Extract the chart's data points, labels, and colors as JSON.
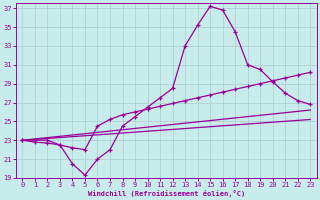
{
  "xlabel": "Windchill (Refroidissement éolien,°C)",
  "background_color": "#c8ecec",
  "grid_color": "#aaaacc",
  "line_color": "#990099",
  "xlim_min": -0.5,
  "xlim_max": 23.5,
  "ylim_min": 19,
  "ylim_max": 37.5,
  "yticks": [
    19,
    21,
    23,
    25,
    27,
    29,
    31,
    33,
    35,
    37
  ],
  "xticks": [
    0,
    1,
    2,
    3,
    4,
    5,
    6,
    7,
    8,
    9,
    10,
    11,
    12,
    13,
    14,
    15,
    16,
    17,
    18,
    19,
    20,
    21,
    22,
    23
  ],
  "line1_x": [
    0,
    1,
    2,
    3,
    4,
    5,
    6,
    7,
    8,
    9,
    10,
    11,
    12,
    13,
    14,
    15,
    16,
    17,
    18,
    19,
    20,
    21,
    22,
    23
  ],
  "line1_y": [
    23,
    23,
    23,
    22.5,
    20.5,
    19.3,
    21.0,
    22.0,
    24.5,
    25.5,
    26.5,
    27.5,
    28.5,
    33.0,
    35.2,
    37.2,
    36.8,
    34.5,
    31.0,
    30.5,
    29.2,
    28.0,
    27.2,
    26.8
  ],
  "line2_x": [
    0,
    1,
    2,
    3,
    4,
    5,
    6,
    7,
    8,
    9,
    10,
    11,
    12,
    13,
    14,
    15,
    16,
    17,
    18,
    19,
    20,
    21,
    22,
    23
  ],
  "line2_y": [
    23.0,
    22.8,
    22.7,
    22.5,
    22.2,
    22.0,
    24.5,
    25.2,
    25.7,
    26.0,
    26.3,
    26.6,
    26.9,
    27.2,
    27.5,
    27.8,
    28.1,
    28.4,
    28.7,
    29.0,
    29.3,
    29.6,
    29.9,
    30.2
  ],
  "line3_x": [
    0,
    23
  ],
  "line3_y": [
    23.0,
    26.2
  ],
  "line4_x": [
    0,
    23
  ],
  "line4_y": [
    23.0,
    25.2
  ]
}
